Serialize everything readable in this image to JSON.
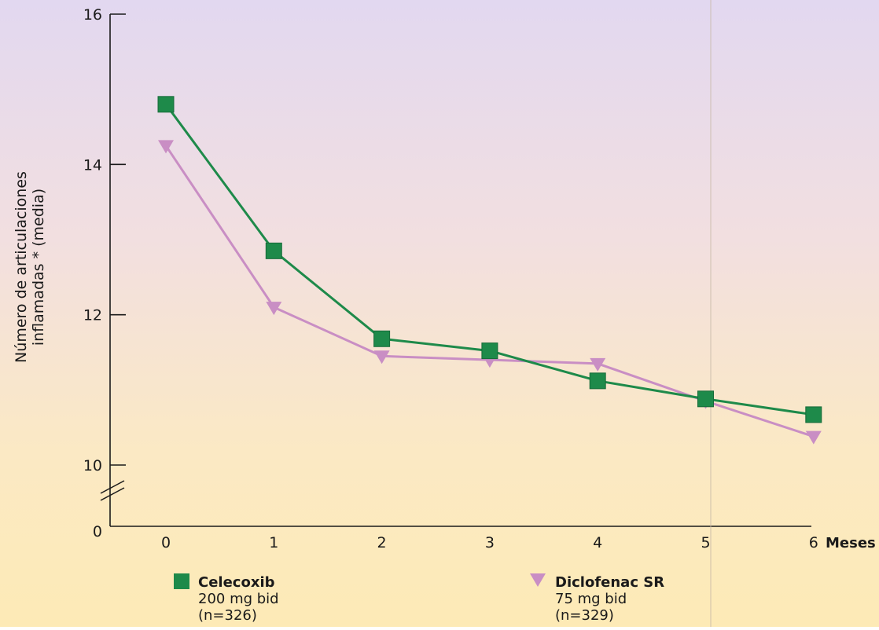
{
  "chart_data": {
    "type": "line",
    "ylabel_line1": "Número de articulaciones",
    "ylabel_line2": "inflamadas * (media)",
    "xlabel": "Meses",
    "x": [
      0,
      1,
      2,
      3,
      4,
      5,
      6
    ],
    "x_tick_labels": [
      "0",
      "1",
      "2",
      "3",
      "4",
      "5",
      "6"
    ],
    "y_ticks": [
      10,
      12,
      14,
      16
    ],
    "y_tick_labels": [
      "10",
      "12",
      "14",
      "16"
    ],
    "y_break_label": "0",
    "ylim": [
      10,
      16
    ],
    "axis_break": true,
    "grid": false,
    "legend_position": "bottom",
    "series": [
      {
        "name": "Celecoxib",
        "detail1": "200 mg bid",
        "detail2": "(n=326)",
        "marker": "square",
        "color": "#1e8a4a",
        "values": [
          14.8,
          12.85,
          11.68,
          11.52,
          11.12,
          10.88,
          10.67
        ]
      },
      {
        "name": "Diclofenac SR",
        "detail1": "75 mg bid",
        "detail2": "(n=329)",
        "marker": "triangle-down",
        "color": "#c98ec4",
        "values": [
          14.25,
          12.1,
          11.45,
          11.4,
          11.35,
          10.85,
          10.38
        ]
      }
    ]
  }
}
